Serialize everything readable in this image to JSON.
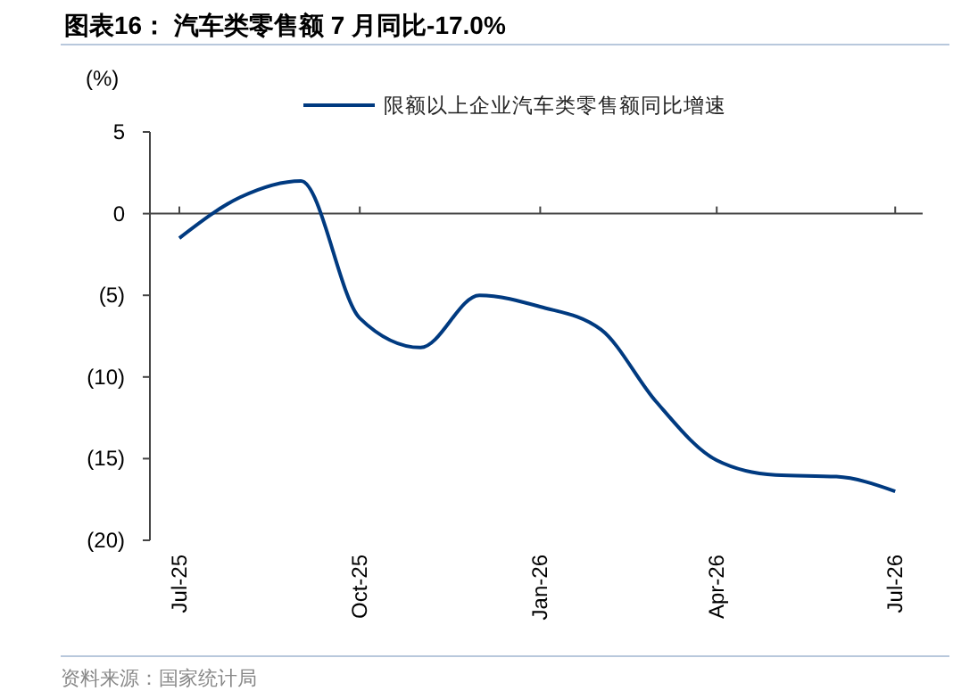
{
  "chart_data": {
    "type": "line",
    "title": "图表16：  汽车类零售额 7 月同比-17.0%",
    "ylabel": "(%)",
    "annotations": [
      "资料来源：国家统计局"
    ],
    "x": [
      "2025-07",
      "2025-08",
      "2025-09",
      "2025-10",
      "2025-11",
      "2025-12",
      "2026-01",
      "2026-02",
      "2026-03",
      "2026-04",
      "2026-05",
      "2026-06",
      "2026-07"
    ],
    "series": [
      {
        "name": "限额以上企业汽车类零售额同比增速",
        "color": "#003a80",
        "values": [
          -1.5,
          1.0,
          2.0,
          -6.4,
          -8.2,
          -5.0,
          -5.7,
          -7.1,
          -11.5,
          -15.1,
          -16.0,
          -16.1,
          -17.0
        ]
      }
    ],
    "xlim": [
      "2025-06-16",
      "2026-07-15"
    ],
    "xticks": [
      {
        "value": "2025-07",
        "label": "Jul-25"
      },
      {
        "value": "2025-10",
        "label": "Oct-25"
      },
      {
        "value": "2026-01",
        "label": "Jan-26"
      },
      {
        "value": "2026-04",
        "label": "Apr-26"
      },
      {
        "value": "2026-07",
        "label": "Jul-26"
      }
    ],
    "ylim": [
      -20,
      5
    ],
    "yticks": [
      5,
      0,
      {
        "value": -5,
        "label": "(5)"
      },
      {
        "value": -10,
        "label": "(10)"
      },
      {
        "value": -15,
        "label": "(15)"
      },
      {
        "value": -20,
        "label": "(20)"
      }
    ],
    "legend": "top",
    "marker": "none",
    "line_style": "solid"
  }
}
